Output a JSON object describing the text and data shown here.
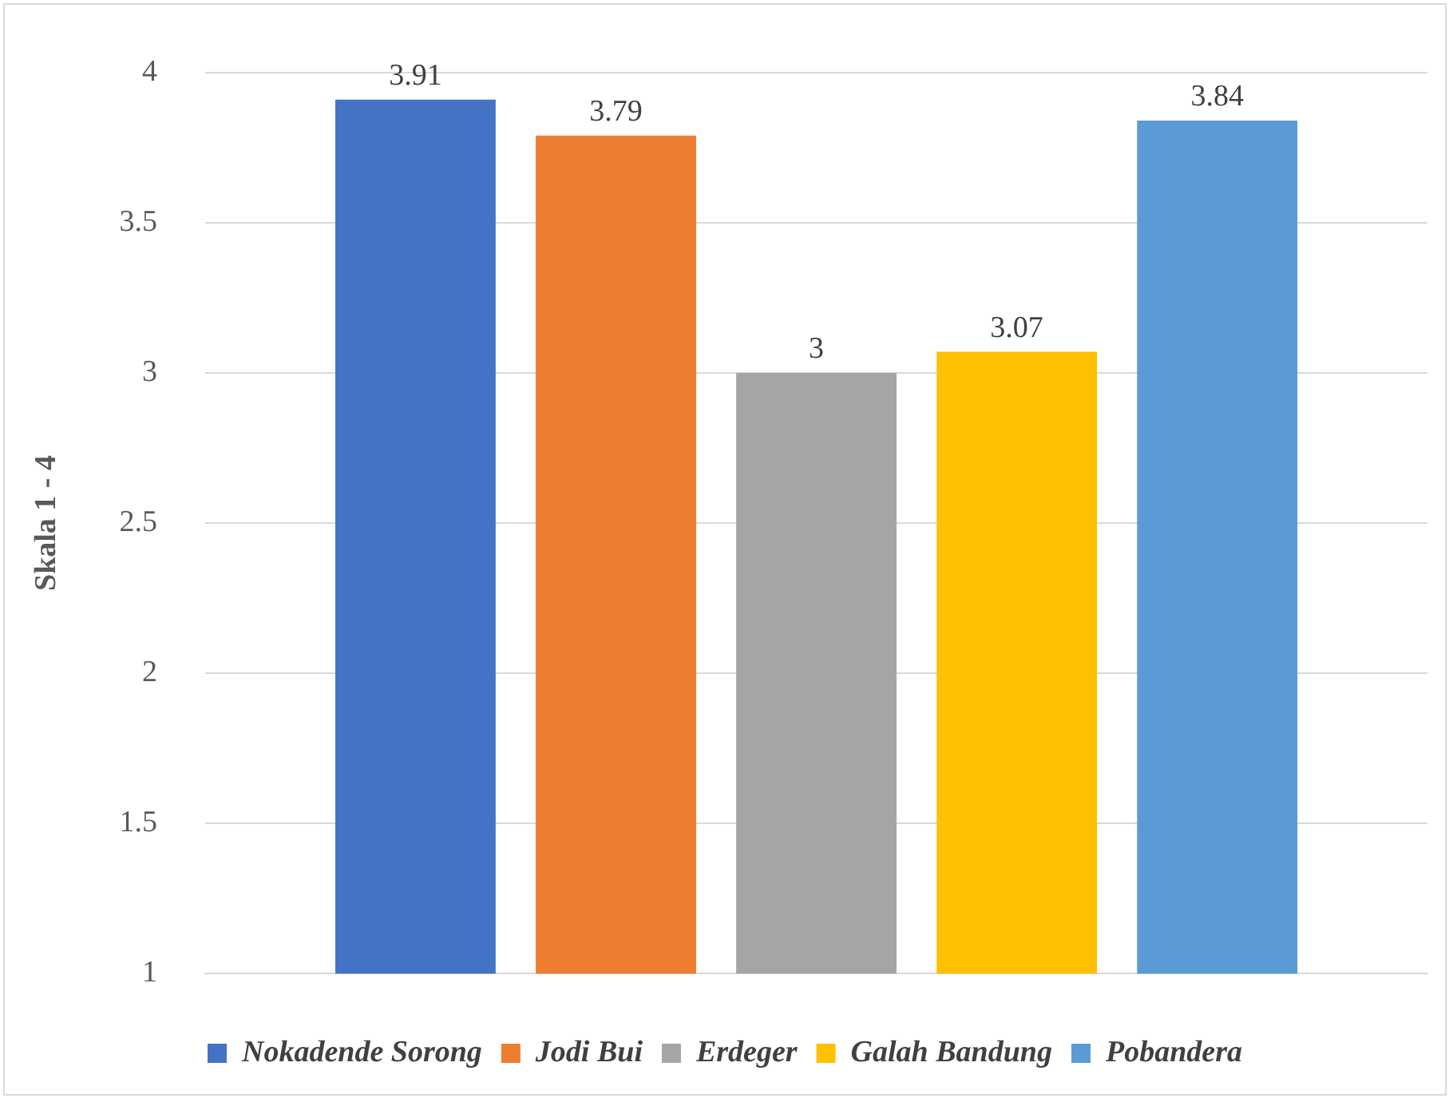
{
  "chart_data": {
    "type": "bar",
    "ylabel": "Skala 1 - 4",
    "categories": [
      null
    ],
    "series": [
      {
        "name": "Nokadende Sorong",
        "color": "#4472c4",
        "values": [
          3.91
        ]
      },
      {
        "name": "Jodi Bui",
        "color": "#ed7d31",
        "values": [
          3.79
        ]
      },
      {
        "name": "Erdeger",
        "color": "#a5a5a5",
        "values": [
          3
        ]
      },
      {
        "name": "Galah Bandung",
        "color": "#ffc000",
        "values": [
          3.07
        ]
      },
      {
        "name": "Pobandera",
        "color": "#5b9bd5",
        "values": [
          3.84
        ]
      }
    ],
    "ylim": [
      1,
      4
    ],
    "yticks": [
      1,
      1.5,
      2,
      2.5,
      3,
      3.5,
      4
    ],
    "grid": "y",
    "legend": "bottom",
    "data_labels": true
  }
}
